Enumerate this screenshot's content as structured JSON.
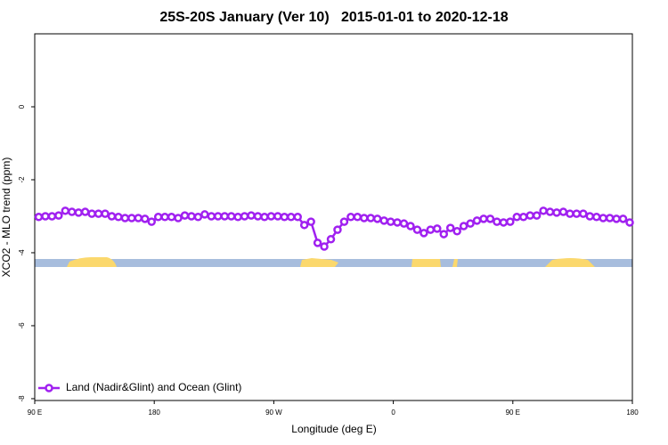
{
  "chart_data": {
    "type": "line",
    "title": "25S-20S January (Ver 10)   2015-01-01 to 2020-12-18",
    "x_label": "Longitude (deg E)",
    "y_label": "XCO2 - MLO trend (ppm)",
    "xlim": [
      90,
      540
    ],
    "xticks": [
      {
        "value": 90,
        "label": "90 E"
      },
      180,
      {
        "value": 270,
        "label": "90 W"
      },
      {
        "value": 360,
        "label": "0"
      },
      {
        "value": 450,
        "label": "90 E"
      },
      {
        "value": 540,
        "label": "180"
      }
    ],
    "ylim": [
      -8.05,
      2
    ],
    "yticks": [
      0,
      -2,
      -4,
      -6,
      -8
    ],
    "legend": "bottom-left",
    "x": [
      93,
      98,
      103,
      108,
      113,
      118,
      123,
      128,
      133,
      138,
      143,
      148,
      153,
      158,
      163,
      168,
      173,
      178,
      183,
      188,
      193,
      198,
      203,
      208,
      213,
      218,
      223,
      228,
      233,
      238,
      243,
      248,
      253,
      258,
      263,
      268,
      273,
      278,
      283,
      288,
      293,
      298,
      303,
      308,
      313,
      318,
      323,
      328,
      333,
      338,
      343,
      348,
      353,
      358,
      363,
      368,
      373,
      378,
      383,
      388,
      393,
      398,
      403,
      408,
      413,
      418,
      423,
      428,
      433,
      438,
      443,
      448,
      453,
      458,
      463,
      468,
      473,
      478,
      483,
      488,
      493,
      498,
      503,
      508,
      513,
      518,
      523,
      528,
      533,
      538
    ],
    "series": [
      {
        "name": "Land (Nadir&Glint) and Ocean (Glint)",
        "color": "#a020f0",
        "values": [
          -3.02,
          -3.0,
          -3.0,
          -2.98,
          -2.85,
          -2.88,
          -2.9,
          -2.88,
          -2.93,
          -2.93,
          -2.93,
          -3.0,
          -3.02,
          -3.05,
          -3.05,
          -3.05,
          -3.07,
          -3.15,
          -3.02,
          -3.02,
          -3.02,
          -3.05,
          -2.98,
          -3.0,
          -3.02,
          -2.95,
          -3.0,
          -3.0,
          -3.0,
          -3.0,
          -3.02,
          -3.0,
          -2.98,
          -3.0,
          -3.02,
          -3.0,
          -3.0,
          -3.02,
          -3.02,
          -3.02,
          -3.24,
          -3.15,
          -3.73,
          -3.83,
          -3.63,
          -3.37,
          -3.15,
          -3.02,
          -3.02,
          -3.05,
          -3.05,
          -3.07,
          -3.12,
          -3.15,
          -3.17,
          -3.2,
          -3.27,
          -3.37,
          -3.46,
          -3.37,
          -3.34,
          -3.49,
          -3.32,
          -3.41,
          -3.27,
          -3.2,
          -3.12,
          -3.07,
          -3.07,
          -3.15,
          -3.17,
          -3.15,
          -3.02,
          -3.02,
          -2.98,
          -2.98,
          -2.85,
          -2.88,
          -2.9,
          -2.88,
          -2.93,
          -2.93,
          -2.93,
          -3.0,
          -3.02,
          -3.05,
          -3.05,
          -3.07,
          -3.07,
          -3.17
        ]
      }
    ]
  }
}
